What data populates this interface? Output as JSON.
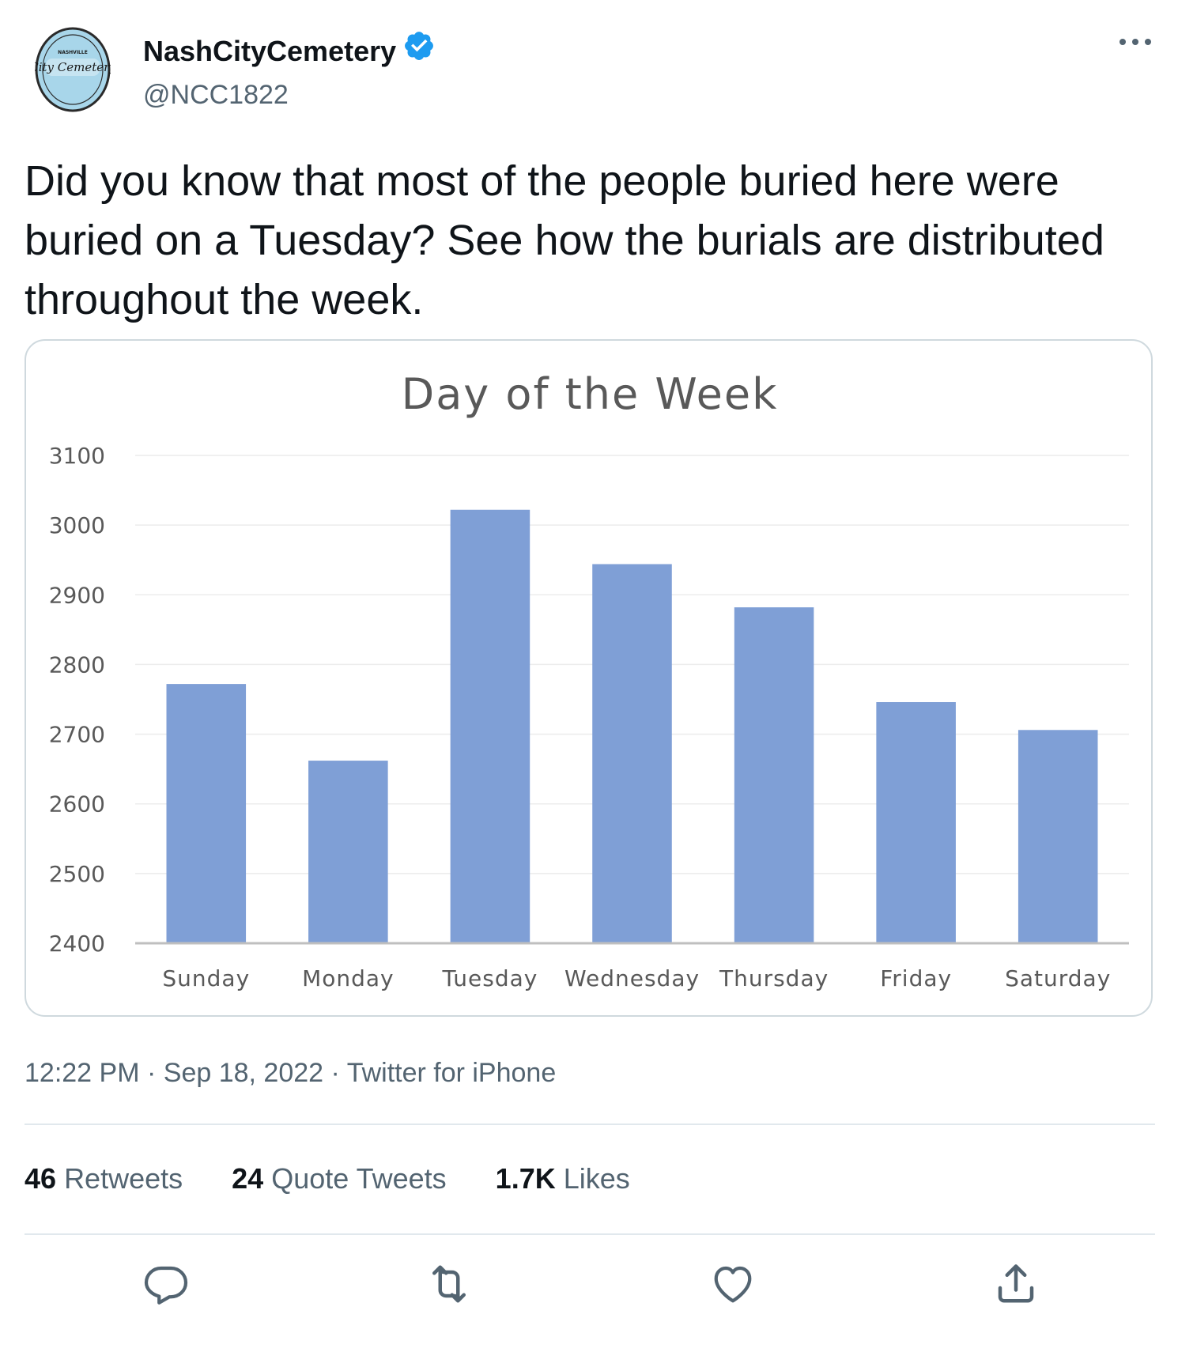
{
  "account": {
    "display_name": "NashCityCemetery",
    "handle": "@NCC1822",
    "verified": true,
    "avatar_logo_text": "Nashville City Cemetery"
  },
  "tweet": {
    "text": "Did you know that most of the people buried here were buried on a Tuesday? See how the burials are distributed throughout the week.",
    "time": "12:22 PM",
    "date": "Sep 18, 2022",
    "source": "Twitter for iPhone",
    "separator": "·"
  },
  "stats": {
    "retweets_count": "46",
    "retweets_label": "Retweets",
    "quotes_count": "24",
    "quotes_label": "Quote Tweets",
    "likes_count": "1.7K",
    "likes_label": "Likes"
  },
  "actions": {
    "reply_icon": "reply-icon",
    "retweet_icon": "retweet-icon",
    "like_icon": "heart-icon",
    "share_icon": "share-icon"
  },
  "colors": {
    "bar": "#7f9fd6",
    "verified": "#1d9bf0",
    "muted": "#536471"
  },
  "chart_data": {
    "type": "bar",
    "title": "Day of the Week",
    "categories": [
      "Sunday",
      "Monday",
      "Tuesday",
      "Wednesday",
      "Thursday",
      "Friday",
      "Saturday"
    ],
    "values": [
      2772,
      2662,
      3022,
      2944,
      2882,
      2746,
      2706
    ],
    "ylim": [
      2400,
      3100
    ],
    "yticks": [
      2400,
      2500,
      2600,
      2700,
      2800,
      2900,
      3000,
      3100
    ],
    "xlabel": "",
    "ylabel": "",
    "grid": true
  }
}
